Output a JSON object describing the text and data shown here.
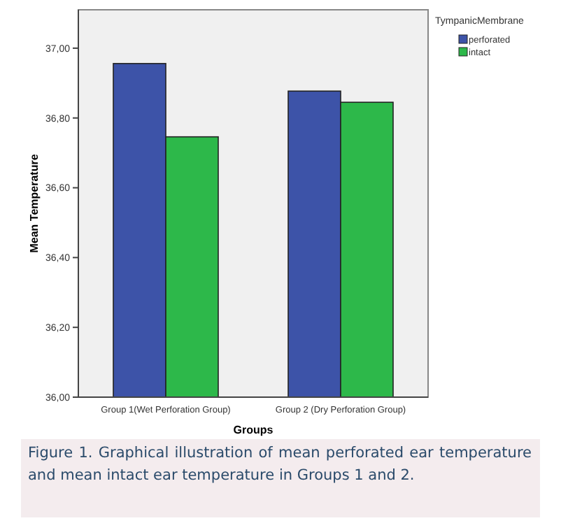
{
  "chart_data": {
    "type": "bar",
    "xlabel": "Groups",
    "ylabel": "Mean Temperature",
    "legend_title": "TympanicMembrane",
    "categories": [
      "Group 1(Wet Perforation Group)",
      "Group 2 (Dry Perforation Group)"
    ],
    "series": [
      {
        "name": "perforated",
        "color": "#3d53a8",
        "values": [
          36.956,
          36.877
        ]
      },
      {
        "name": "intact",
        "color": "#2db84a",
        "values": [
          36.746,
          36.845
        ]
      }
    ],
    "ylim": [
      36,
      37.11
    ],
    "yticks": [
      {
        "value": 36,
        "label": "36,00"
      },
      {
        "value": 36.2,
        "label": "36,20"
      },
      {
        "value": 36.4,
        "label": "36,40"
      },
      {
        "value": 36.6,
        "label": "36,60"
      },
      {
        "value": 36.8,
        "label": "36,80"
      },
      {
        "value": 37,
        "label": "37,00"
      }
    ],
    "legend": "top right",
    "grid": false,
    "annotations": [
      "Figure 1. Graphical illustration of mean perforated ear temperature and mean intact ear temperature in Groups 1 and 2."
    ]
  }
}
